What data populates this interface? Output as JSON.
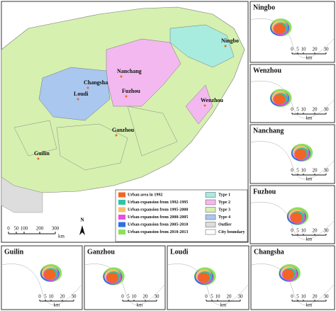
{
  "main_map": {
    "city_labels": [
      "Ningbo",
      "Nanchang",
      "Changsha",
      "Loudi",
      "Fuzhou",
      "Wenzhou",
      "Guilin",
      "Ganzhou"
    ],
    "scale_bar": {
      "ticks": [
        0,
        50,
        100,
        200,
        300
      ],
      "unit": "km"
    },
    "north": "N"
  },
  "legend": {
    "expansion": [
      {
        "label": "Urban area in 1992",
        "color": "#f26522"
      },
      {
        "label": "Urban expansion from 1992-1995",
        "color": "#2dc6a0"
      },
      {
        "label": "Urban expansion from 1995-2000",
        "color": "#f7c16a"
      },
      {
        "label": "Urban expansion from 2000-2005",
        "color": "#e64fe0"
      },
      {
        "label": "Urban expansion from 2005-2010",
        "color": "#2f6fe0"
      },
      {
        "label": "Urban expansion from 2010-2013",
        "color": "#8be05c"
      }
    ],
    "types": [
      {
        "label": "Type 1",
        "color": "#a8ece0"
      },
      {
        "label": "Type 2",
        "color": "#f3b8f0"
      },
      {
        "label": "Type 3",
        "color": "#d6f0b0"
      },
      {
        "label": "Type 4",
        "color": "#a9c7ef"
      },
      {
        "label": "Outlier",
        "color": "#dddddd"
      },
      {
        "label": "City boundary",
        "color": "#ffffff"
      }
    ]
  },
  "insets": [
    {
      "title": "Ningbo",
      "scale_ticks": [
        0,
        5,
        10,
        20,
        30
      ],
      "unit": "km"
    },
    {
      "title": "Wenzhou",
      "scale_ticks": [
        0,
        5,
        10,
        20,
        30
      ],
      "unit": "km"
    },
    {
      "title": "Nanchang",
      "scale_ticks": [
        0,
        5,
        10,
        20,
        30
      ],
      "unit": "km"
    },
    {
      "title": "Fuzhou",
      "scale_ticks": [
        0,
        5,
        10,
        20,
        30
      ],
      "unit": "km"
    },
    {
      "title": "Guilin",
      "scale_ticks": [
        0,
        5,
        10,
        20,
        30
      ],
      "unit": "km"
    },
    {
      "title": "Ganzhou",
      "scale_ticks": [
        0,
        5,
        10,
        20,
        30
      ],
      "unit": "km"
    },
    {
      "title": "Loudi",
      "scale_ticks": [
        0,
        5,
        10,
        20,
        30
      ],
      "unit": "km"
    },
    {
      "title": "Changsha",
      "scale_ticks": [
        0,
        5,
        10,
        20,
        30
      ],
      "unit": "km"
    }
  ]
}
